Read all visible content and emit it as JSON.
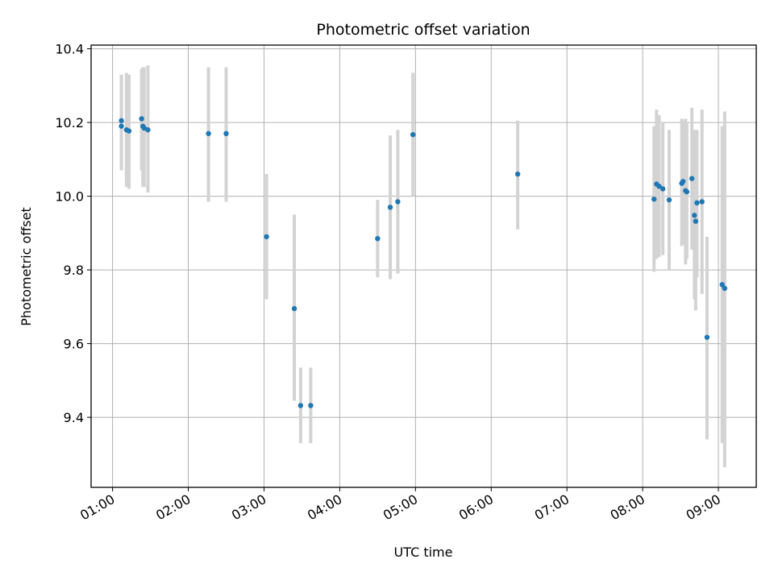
{
  "chart_data": {
    "type": "scatter",
    "title": "Photometric offset variation",
    "xlabel": "UTC time",
    "ylabel": "Photometric offset",
    "x_ticks": [
      "01:00",
      "02:00",
      "03:00",
      "04:00",
      "05:00",
      "06:00",
      "07:00",
      "08:00",
      "09:00"
    ],
    "y_ticks": [
      "9.4",
      "9.6",
      "9.8",
      "10.0",
      "10.2",
      "10.4"
    ],
    "xlim": [
      "00:43",
      "09:30"
    ],
    "ylim": [
      9.21,
      10.41
    ],
    "grid": true,
    "colors": {
      "marker": "#1f77b4",
      "errorbar": "#d3d3d3",
      "grid": "#b0b0b0"
    },
    "points": [
      {
        "x": "01:07",
        "y": 10.19,
        "err_lo": 10.07,
        "err_hi": 10.33
      },
      {
        "x": "01:07",
        "y": 10.205,
        "err_lo": 10.07,
        "err_hi": 10.33
      },
      {
        "x": "01:11",
        "y": 10.18,
        "err_lo": 10.025,
        "err_hi": 10.335
      },
      {
        "x": "01:13",
        "y": 10.177,
        "err_lo": 10.02,
        "err_hi": 10.33
      },
      {
        "x": "01:23",
        "y": 10.21,
        "err_lo": 10.07,
        "err_hi": 10.345
      },
      {
        "x": "01:24",
        "y": 10.19,
        "err_lo": 10.025,
        "err_hi": 10.35
      },
      {
        "x": "01:25",
        "y": 10.185,
        "err_lo": 10.025,
        "err_hi": 10.35
      },
      {
        "x": "01:28",
        "y": 10.18,
        "err_lo": 10.01,
        "err_hi": 10.355
      },
      {
        "x": "02:16",
        "y": 10.17,
        "err_lo": 9.985,
        "err_hi": 10.35
      },
      {
        "x": "02:30",
        "y": 10.17,
        "err_lo": 9.985,
        "err_hi": 10.35
      },
      {
        "x": "03:02",
        "y": 9.89,
        "err_lo": 9.72,
        "err_hi": 10.06
      },
      {
        "x": "03:24",
        "y": 9.695,
        "err_lo": 9.445,
        "err_hi": 9.95
      },
      {
        "x": "03:29",
        "y": 9.432,
        "err_lo": 9.33,
        "err_hi": 9.535
      },
      {
        "x": "03:37",
        "y": 9.432,
        "err_lo": 9.33,
        "err_hi": 9.535
      },
      {
        "x": "04:30",
        "y": 9.885,
        "err_lo": 9.78,
        "err_hi": 9.99
      },
      {
        "x": "04:40",
        "y": 9.97,
        "err_lo": 9.775,
        "err_hi": 10.165
      },
      {
        "x": "04:46",
        "y": 9.985,
        "err_lo": 9.79,
        "err_hi": 10.18
      },
      {
        "x": "04:58",
        "y": 10.167,
        "err_lo": 10.0,
        "err_hi": 10.335
      },
      {
        "x": "06:21",
        "y": 10.06,
        "err_lo": 9.91,
        "err_hi": 10.205
      },
      {
        "x": "08:09",
        "y": 9.992,
        "err_lo": 9.795,
        "err_hi": 10.19
      },
      {
        "x": "08:11",
        "y": 10.033,
        "err_lo": 9.83,
        "err_hi": 10.235
      },
      {
        "x": "08:13",
        "y": 10.027,
        "err_lo": 9.835,
        "err_hi": 10.22
      },
      {
        "x": "08:16",
        "y": 10.02,
        "err_lo": 9.84,
        "err_hi": 10.2
      },
      {
        "x": "08:21",
        "y": 9.99,
        "err_lo": 9.8,
        "err_hi": 10.18
      },
      {
        "x": "08:31",
        "y": 10.035,
        "err_lo": 9.865,
        "err_hi": 10.21
      },
      {
        "x": "08:32",
        "y": 10.04,
        "err_lo": 9.87,
        "err_hi": 10.205
      },
      {
        "x": "08:34",
        "y": 10.015,
        "err_lo": 9.815,
        "err_hi": 10.21
      },
      {
        "x": "08:35",
        "y": 10.012,
        "err_lo": 9.83,
        "err_hi": 10.2
      },
      {
        "x": "08:39",
        "y": 10.048,
        "err_lo": 9.855,
        "err_hi": 10.24
      },
      {
        "x": "08:41",
        "y": 9.948,
        "err_lo": 9.72,
        "err_hi": 10.18
      },
      {
        "x": "08:42",
        "y": 9.932,
        "err_lo": 9.69,
        "err_hi": 10.175
      },
      {
        "x": "08:43",
        "y": 9.982,
        "err_lo": 9.78,
        "err_hi": 10.18
      },
      {
        "x": "08:47",
        "y": 9.985,
        "err_lo": 9.735,
        "err_hi": 10.235
      },
      {
        "x": "08:51",
        "y": 9.617,
        "err_lo": 9.34,
        "err_hi": 9.89
      },
      {
        "x": "09:03",
        "y": 9.76,
        "err_lo": 9.33,
        "err_hi": 10.19
      },
      {
        "x": "09:05",
        "y": 9.75,
        "err_lo": 9.265,
        "err_hi": 10.23
      }
    ]
  }
}
